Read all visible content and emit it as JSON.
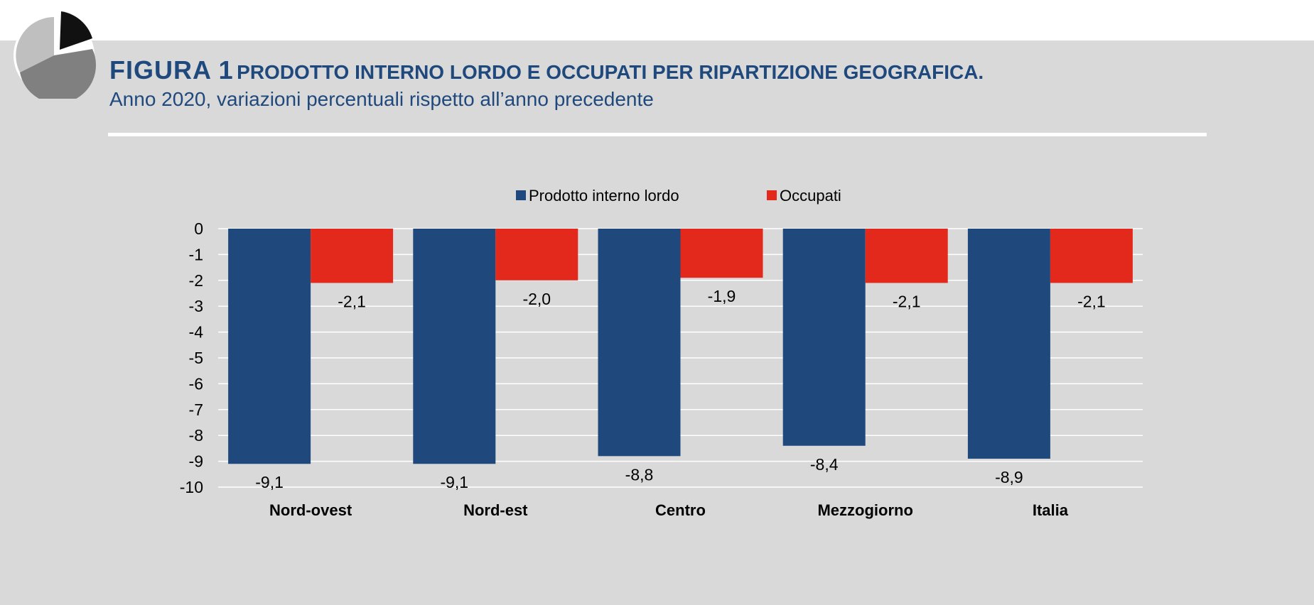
{
  "header": {
    "figure_label": "FIGURA 1",
    "title": "PRODOTTO INTERNO LORDO E OCCUPATI PER RIPARTIZIONE GEOGRAFICA.",
    "subtitle": "Anno 2020, variazioni percentuali rispetto all’anno precedente"
  },
  "logo": {
    "icon": "pie-chart-logo-icon"
  },
  "colors": {
    "title": "#1f497d",
    "panel_background": "#d9d9d9",
    "gridline": "#ffffff"
  },
  "chart_data": {
    "type": "bar",
    "categories": [
      "Nord-ovest",
      "Nord-est",
      "Centro",
      "Mezzogiorno",
      "Italia"
    ],
    "series": [
      {
        "name": "Prodotto interno lordo",
        "color": "#1f497d",
        "values": [
          -9.1,
          -9.1,
          -8.8,
          -8.4,
          -8.9
        ],
        "labels": [
          "-9,1",
          "-9,1",
          "-8,8",
          "-8,4",
          "-8,9"
        ]
      },
      {
        "name": "Occupati",
        "color": "#e3281c",
        "values": [
          -2.1,
          -2.0,
          -1.9,
          -2.1,
          -2.1
        ],
        "labels": [
          "-2,1",
          "-2,0",
          "-1,9",
          "-2,1",
          "-2,1"
        ]
      }
    ],
    "ylim": [
      -10,
      0
    ],
    "yticks": [
      0,
      -1,
      -2,
      -3,
      -4,
      -5,
      -6,
      -7,
      -8,
      -9,
      -10
    ],
    "ytick_labels": [
      "0",
      "-1",
      "-2",
      "-3",
      "-4",
      "-5",
      "-6",
      "-7",
      "-8",
      "-9",
      "-10"
    ],
    "xlabel": "",
    "ylabel": "",
    "grid": true,
    "legend_position": "top-center"
  }
}
